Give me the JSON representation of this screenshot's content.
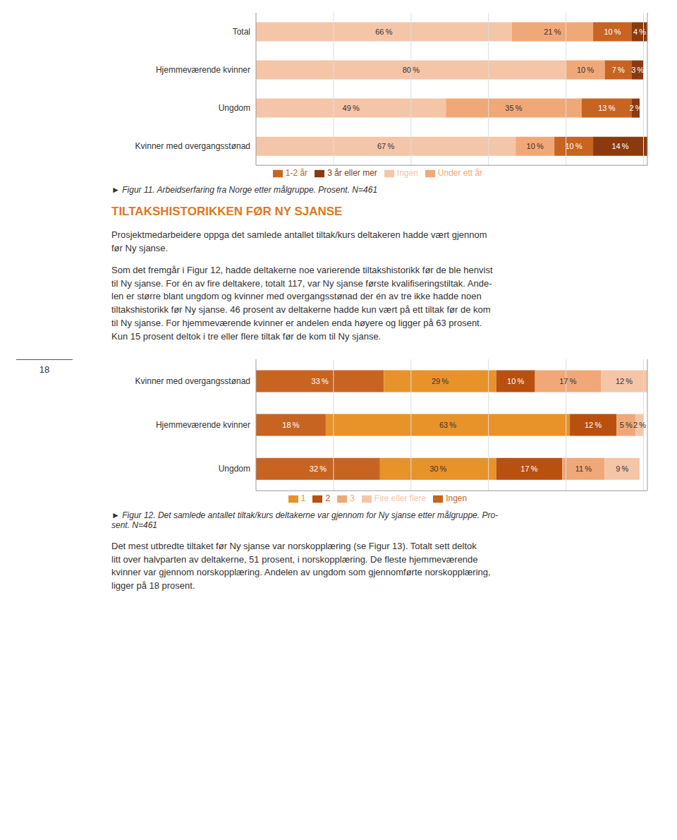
{
  "chart_data": [
    {
      "type": "bar",
      "orientation": "horizontal",
      "stacked": true,
      "title": "► Figur 11. Arbeidserfaring fra Norge etter målgruppe. Prosent. N=461",
      "categories": [
        "Total",
        "Hjemmeværende kvinner",
        "Ungdom",
        "Kvinner med overgangsstønad"
      ],
      "series": [
        {
          "name": "Ingen",
          "color": "#f5c5a8",
          "values": [
            66,
            80,
            49,
            67
          ],
          "value_labels": [
            "66 %",
            "80 %",
            "49 %",
            "67 %"
          ]
        },
        {
          "name": "Under ett år",
          "color": "#f0a878",
          "values": [
            21,
            10,
            35,
            10
          ],
          "value_labels": [
            "21 %",
            "10 %",
            "35 %",
            "10 %"
          ]
        },
        {
          "name": "1-2 år",
          "color": "#c86422",
          "values": [
            10,
            7,
            13,
            10
          ],
          "value_labels": [
            "10 %",
            "7 %",
            "13 %",
            "10 %"
          ]
        },
        {
          "name": "3 år eller mer",
          "color": "#8b3a0f",
          "values": [
            4,
            3,
            2,
            14
          ],
          "value_labels": [
            "4 %",
            "3 %",
            "2 %",
            "14 %"
          ]
        }
      ],
      "xlim": [
        0,
        101
      ],
      "xticks": [
        20,
        40,
        60,
        80,
        100
      ],
      "grid": true,
      "legend": "bottom",
      "data_labels": true,
      "tick_labels": "y",
      "annotations": [
        "TILTAKSHISTORIKKEN FØR NY SJANSE",
        "Prosjektmedarbeidere oppga det samlede antallet tiltak/kurs deltakeren hadde vært gjennom\nfør Ny sjanse.",
        "Som det fremgår i Figur 12, hadde deltakerne noe varierende tiltakshistorikk før de ble henvist\ntil Ny sjanse. For én av fire deltakere, totalt 117, var Ny sjanse første kvalifiseringstiltak. Ande-\nlen er større blant ungdom og kvinner med overgangsstønad der én av tre ikke hadde noen\ntiltakshistorikk før Ny sjanse. 46 prosent av deltakerne hadde kun vært på ett tiltak før de kom\ntil Ny sjanse. For hjemmeværende kvinner er andelen enda høyere og ligger på 63 prosent.\nKun 15 prosent deltok i tre eller flere tiltak før de kom til Ny sjanse."
      ]
    },
    {
      "type": "bar",
      "orientation": "horizontal",
      "stacked": true,
      "title": "► Figur 12. Det samlede antallet tiltak/kurs deltakerne var gjennom for Ny sjanse etter målgruppe. Pro-\nsent. N=461",
      "categories": [
        "Kvinner med overgangsstønad",
        "Hjemmeværende kvinner",
        "Ungdom"
      ],
      "series": [
        {
          "name": "Ingen",
          "color": "#c86422",
          "values": [
            33,
            18,
            32
          ],
          "value_labels": [
            "33 %",
            "18 %",
            "32 %"
          ]
        },
        {
          "name": "1",
          "color": "#e8922a",
          "values": [
            29,
            63,
            30
          ],
          "value_labels": [
            "29 %",
            "63 %",
            "30 %"
          ]
        },
        {
          "name": "2",
          "color": "#b85010",
          "values": [
            10,
            12,
            17
          ],
          "value_labels": [
            "10 %",
            "12 %",
            "17 %"
          ]
        },
        {
          "name": "3",
          "color": "#f0a878",
          "values": [
            17,
            5,
            11
          ],
          "value_labels": [
            "17 %",
            "5 %",
            "11 %"
          ]
        },
        {
          "name": "Fire eller flere",
          "color": "#f5c5a8",
          "values": [
            12,
            2,
            9
          ],
          "value_labels": [
            "12 %",
            "2 %",
            "9 %"
          ]
        }
      ],
      "xlim": [
        0,
        101
      ],
      "xticks": [
        20,
        40,
        60,
        80,
        100
      ],
      "grid": true,
      "legend": "bottom",
      "data_labels": true,
      "tick_labels": "y",
      "annotations": [
        "Det mest utbredte tiltaket før Ny sjanse var norskopplæring (se Figur 13). Totalt sett deltok\nlitt over halvparten av deltakerne, 51 prosent, i norskopplæring. De fleste hjemmeværende\nkvinner var gjennom norskopplæring. Andelen av ungdom som gjennomførte norskopplæring,\nligger på 18 prosent.",
        "18"
      ]
    }
  ]
}
